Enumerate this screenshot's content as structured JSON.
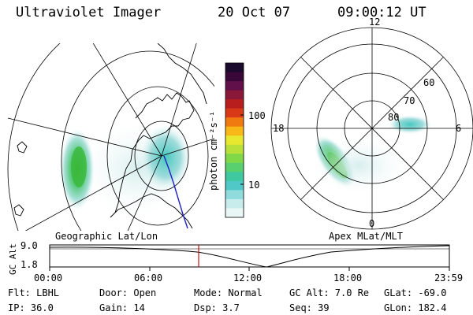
{
  "header": {
    "title": "Ultraviolet Imager",
    "date": "20 Oct 07",
    "time": "09:00:12 UT"
  },
  "colorbar": {
    "unit": "photon cm⁻²s⁻¹",
    "tick_100": "100",
    "tick_10": "10",
    "colors_top_to_bottom": [
      "#1a0a2e",
      "#3a0838",
      "#62104a",
      "#8a1838",
      "#b81e1e",
      "#d83a18",
      "#f07a10",
      "#f8b818",
      "#e8e830",
      "#b8e038",
      "#80d848",
      "#58d070",
      "#40c8a0",
      "#50c8c8",
      "#90dcdc",
      "#c8ecec",
      "#e8f6f6"
    ]
  },
  "left_map": {
    "label": "Geographic Lat/Lon"
  },
  "right_map": {
    "label": "Apex  MLat/MLT",
    "mlt_labels": {
      "top": "12",
      "left": "18",
      "right": "6",
      "bottom": "0"
    },
    "lat_labels": [
      "60",
      "70",
      "80"
    ]
  },
  "timeline": {
    "ylabel": "GC Alt",
    "yticks": [
      "9.0",
      "1.8"
    ],
    "xticks": [
      "00:00",
      "06:00",
      "12:00",
      "18:00",
      "23:59"
    ],
    "marker_time": "09:00"
  },
  "info": {
    "flt": "Flt: LBHL",
    "ip": "IP: 36.0",
    "door": "Door: Open",
    "gain": "Gain: 14",
    "mode": "Mode: Normal",
    "dsp": "Dsp:    3.7",
    "gc_alt": "GC Alt: 7.0 Re",
    "seq": "Seq: 39",
    "glat": "GLat: -69.0",
    "glon": "GLon: 182.4"
  }
}
